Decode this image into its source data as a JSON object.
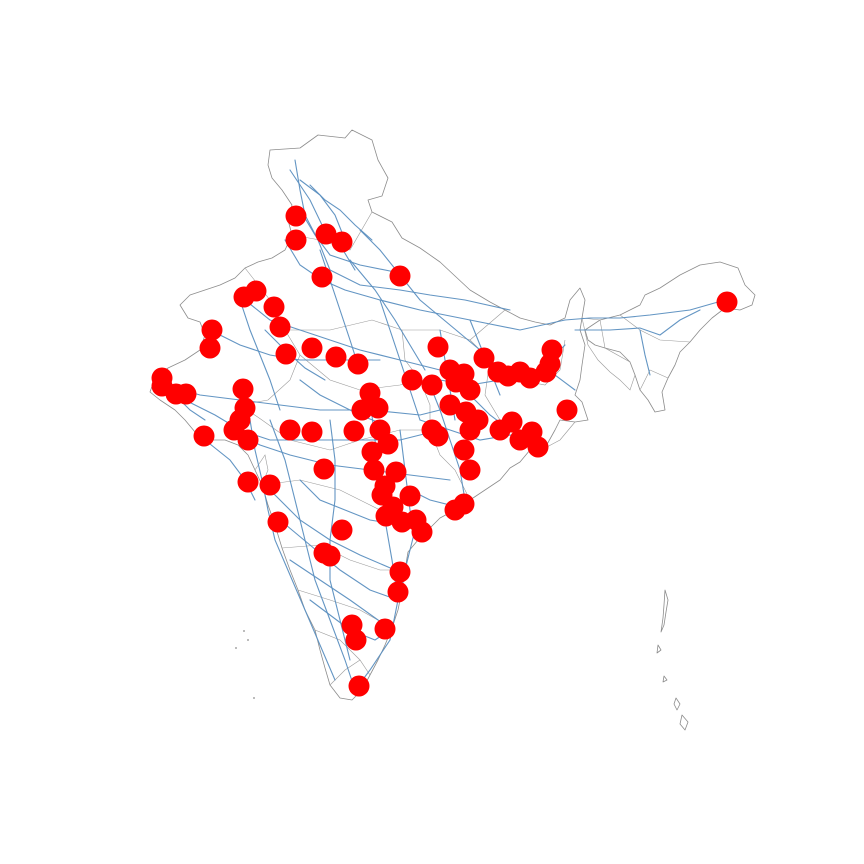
{
  "map": {
    "region": "India",
    "basemap": "state-boundaries",
    "background": "#ffffff",
    "layers": [
      {
        "name": "boundaries",
        "kind": "polygon-outline",
        "color": "#8c8c8c"
      },
      {
        "name": "transmission-lines",
        "kind": "polyline",
        "color": "#5b8fc0"
      },
      {
        "name": "power-plants",
        "kind": "point-markers",
        "color": "#ff0000",
        "marker": "filled-circle"
      }
    ],
    "legend": null,
    "title": ""
  }
}
